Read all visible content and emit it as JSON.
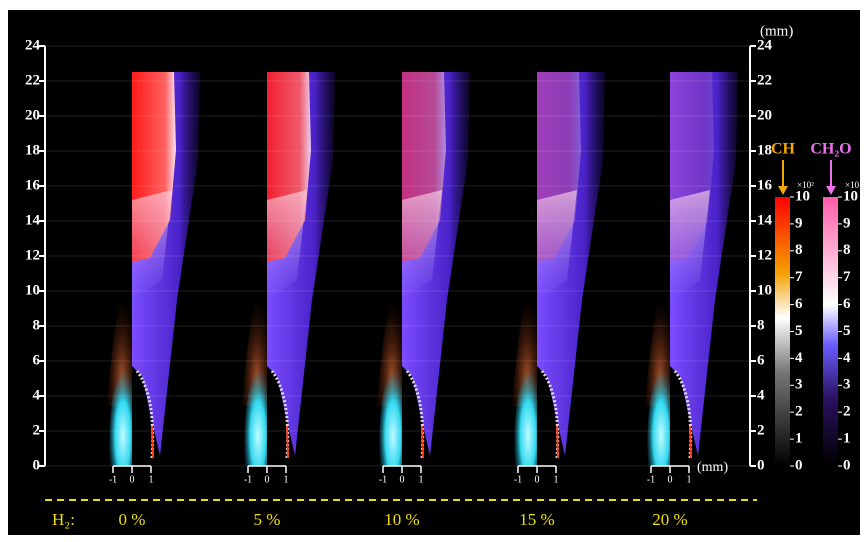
{
  "axis": {
    "unit": "(mm)",
    "ticks": [
      0,
      2,
      4,
      6,
      8,
      10,
      12,
      14,
      16,
      18,
      20,
      22,
      24
    ]
  },
  "x_scale": {
    "ticks": [
      -1,
      0,
      1
    ],
    "unit": "(mm)"
  },
  "colorbars": [
    {
      "species": "CH",
      "multiplier": "×10²",
      "ticks": [
        0,
        1,
        2,
        3,
        4,
        5,
        6,
        7,
        8,
        9,
        10
      ]
    },
    {
      "species": "CH₂O",
      "multiplier": "×10",
      "ticks": [
        0,
        1,
        2,
        3,
        4,
        5,
        6,
        7,
        8,
        9,
        10
      ]
    }
  ],
  "h2_label": "H₂:",
  "panels": [
    {
      "label": "0 %"
    },
    {
      "label": "5 %"
    },
    {
      "label": "10 %"
    },
    {
      "label": "15 %"
    },
    {
      "label": "20 %"
    }
  ]
}
